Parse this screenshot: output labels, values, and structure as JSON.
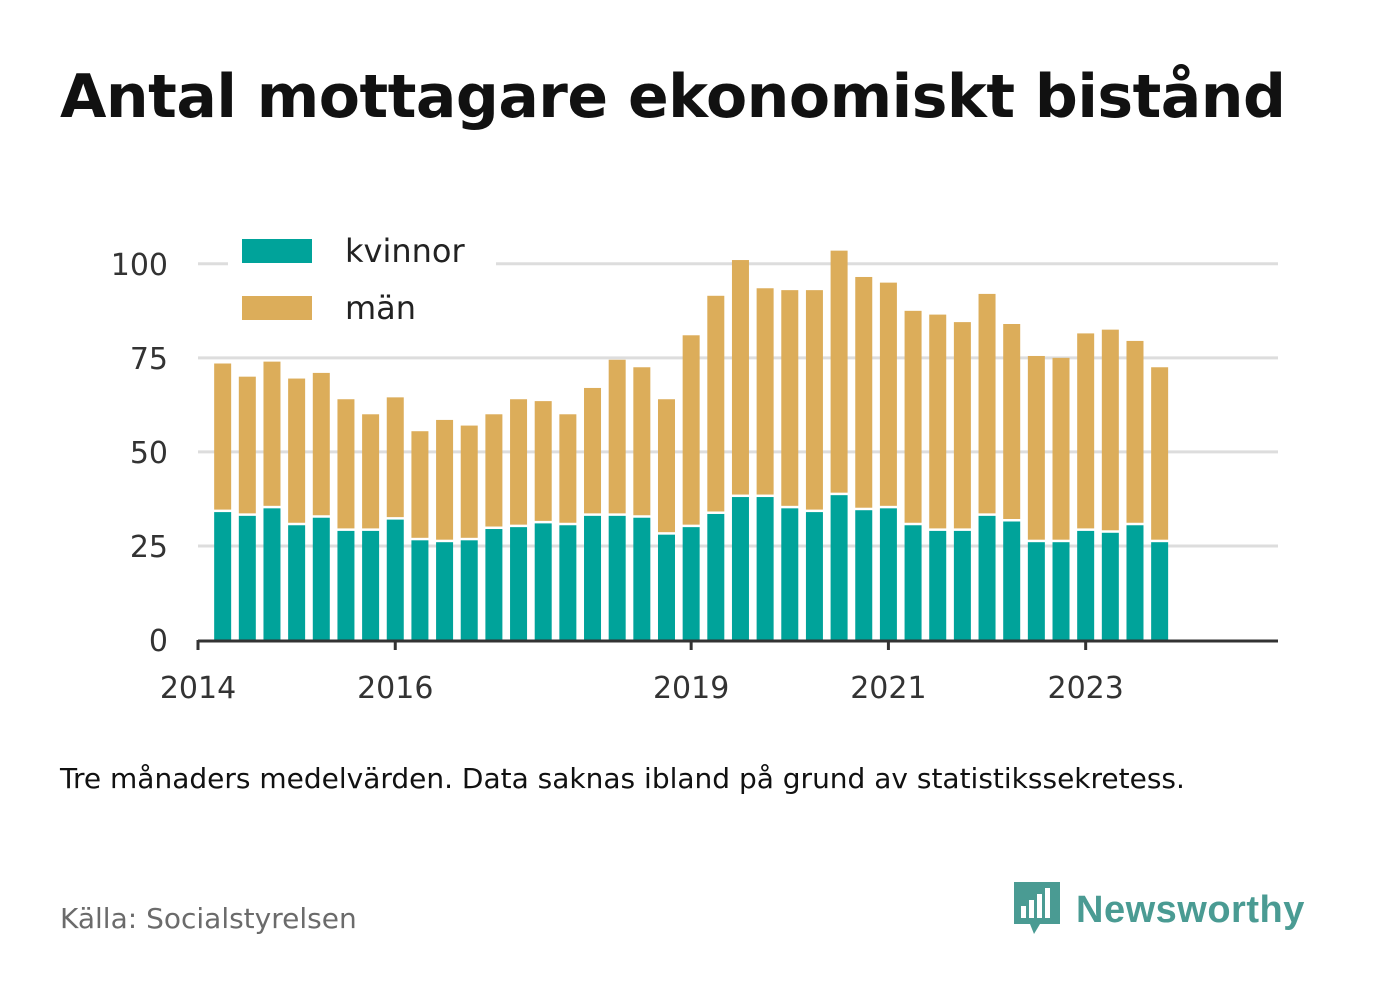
{
  "header": {
    "title": "Antal mottagare ekonomiskt bistånd"
  },
  "footer": {
    "caption": "Tre månaders medelvärden. Data saknas ibland på grund av statistikssekretess.",
    "source": "Källa: Socialstyrelsen",
    "brand": "Newsworthy",
    "brand_icon": "bar-chart-speech-bubble-icon"
  },
  "colors": {
    "kvinnor": "#00a39a",
    "man": "#dcad5a",
    "grid": "#dddddd",
    "axis": "#333333",
    "brand": "#4a9b93"
  },
  "chart_data": {
    "type": "bar",
    "stacked": true,
    "title": "Antal mottagare ekonomiskt bistånd",
    "xlabel": "",
    "ylabel": "",
    "ylim": [
      0,
      105
    ],
    "yticks": [
      0,
      25,
      50,
      75,
      100
    ],
    "xlim": [
      2014.0,
      2024.95
    ],
    "xticks": [
      {
        "value": 2014.0,
        "label": "2014"
      },
      {
        "value": 2016.0,
        "label": "2016"
      },
      {
        "value": 2019.0,
        "label": "2019"
      },
      {
        "value": 2021.0,
        "label": "2021"
      },
      {
        "value": 2023.0,
        "label": "2023"
      }
    ],
    "grid": true,
    "legend_position": "top-left",
    "x": [
      2014.25,
      2014.5,
      2014.75,
      2015.0,
      2015.25,
      2015.5,
      2015.75,
      2016.0,
      2016.25,
      2016.5,
      2016.75,
      2017.0,
      2017.25,
      2017.5,
      2017.75,
      2018.0,
      2018.25,
      2018.5,
      2018.75,
      2019.0,
      2019.25,
      2019.5,
      2019.75,
      2020.0,
      2020.25,
      2020.5,
      2020.75,
      2021.0,
      2021.25,
      2021.5,
      2021.75,
      2022.0,
      2022.25,
      2022.5,
      2022.75,
      2023.0,
      2023.25,
      2023.5,
      2023.75
    ],
    "series": [
      {
        "name": "kvinnor",
        "values": [
          34,
          33,
          35,
          30.5,
          32.5,
          29,
          29,
          32,
          26.5,
          26,
          26.5,
          29.5,
          30,
          31,
          30.5,
          33,
          33,
          32.5,
          28,
          30,
          33.5,
          38,
          38,
          35,
          34,
          38.5,
          34.5,
          35,
          30.5,
          29,
          29,
          33,
          31.5,
          26,
          26,
          29,
          28.5,
          30.5,
          26
        ]
      },
      {
        "name": "män",
        "values": [
          39.5,
          37,
          39,
          39,
          38.5,
          35,
          31,
          32.5,
          29,
          32.5,
          30.5,
          30.5,
          34,
          32.5,
          29.5,
          34,
          41.5,
          40,
          36,
          51,
          58,
          63,
          55.5,
          58,
          59,
          65,
          62,
          60,
          57,
          57.5,
          55.5,
          59,
          52.5,
          49.5,
          49,
          52.5,
          54,
          49,
          46.5
        ]
      }
    ]
  }
}
